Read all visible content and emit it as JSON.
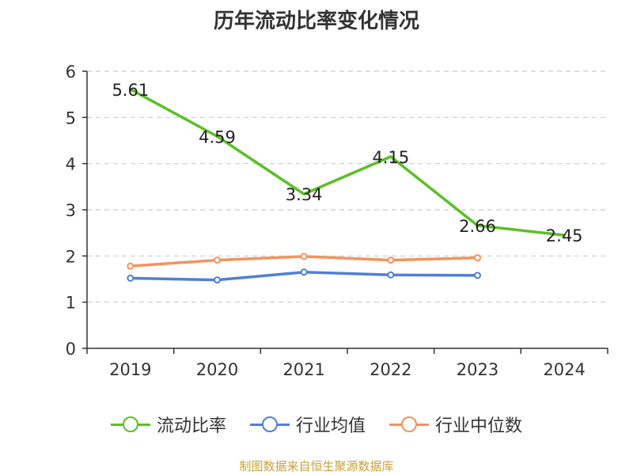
{
  "chart_data": {
    "type": "line",
    "title": "历年流动比率变化情况",
    "categories": [
      "2019",
      "2020",
      "2021",
      "2022",
      "2023",
      "2024"
    ],
    "ylim": [
      0,
      6
    ],
    "yticks": [
      0,
      1,
      2,
      3,
      4,
      5,
      6
    ],
    "grid": true,
    "legend": "bottom",
    "series": [
      {
        "name": "流动比率",
        "color": "#5cbf26",
        "values": [
          5.61,
          4.59,
          3.34,
          4.15,
          2.66,
          2.45
        ],
        "labels": [
          "5.61",
          "4.59",
          "3.34",
          "4.15",
          "2.66",
          "2.45"
        ],
        "markers": false
      },
      {
        "name": "行业均值",
        "color": "#4f7fd9",
        "values": [
          1.52,
          1.48,
          1.65,
          1.59,
          1.58,
          null
        ],
        "markers": true
      },
      {
        "name": "行业中位数",
        "color": "#f4935c",
        "values": [
          1.78,
          1.91,
          1.99,
          1.91,
          1.96,
          null
        ],
        "markers": true
      }
    ]
  },
  "footer": "制图数据来自恒生聚源数据库"
}
